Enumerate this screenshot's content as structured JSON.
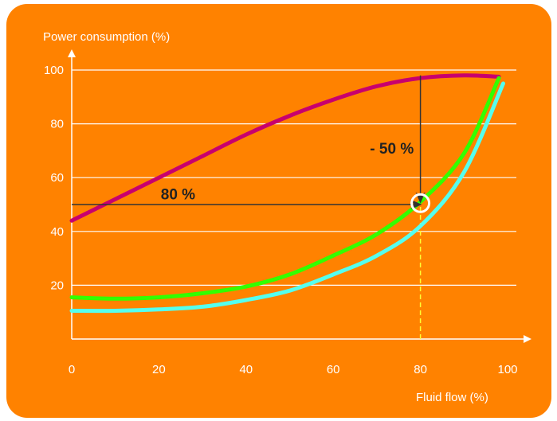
{
  "chart_data": {
    "type": "line",
    "xlabel": "Fluid flow (%)",
    "ylabel": "Power consumption (%)",
    "xlim": [
      0,
      100
    ],
    "ylim": [
      0,
      100
    ],
    "x_ticks": [
      0,
      20,
      40,
      60,
      80,
      100
    ],
    "y_ticks": [
      20,
      40,
      60,
      80,
      100
    ],
    "grid": "horizontal",
    "background_color": "#ff8200",
    "series": [
      {
        "color": "#c8006e",
        "x": [
          0,
          10,
          20,
          30,
          40,
          50,
          60,
          70,
          80,
          90,
          98
        ],
        "y": [
          44,
          52,
          60,
          68,
          76,
          83,
          89,
          94,
          97,
          98,
          97.5
        ]
      },
      {
        "color": "#33ff00",
        "x": [
          0,
          10,
          20,
          30,
          40,
          50,
          60,
          70,
          80,
          90,
          98
        ],
        "y": [
          15.5,
          15,
          15.5,
          17,
          19.5,
          24,
          31,
          39,
          51,
          69,
          97
        ]
      },
      {
        "color": "#55ffee",
        "x": [
          0,
          10,
          20,
          30,
          40,
          50,
          60,
          70,
          80,
          90,
          99
        ],
        "y": [
          10.5,
          10.5,
          11,
          12,
          14.5,
          18,
          24,
          31,
          42,
          62,
          95
        ]
      }
    ],
    "annotations": [
      {
        "text": "80 %",
        "x": 25,
        "y": 54
      },
      {
        "text": "- 50 %",
        "x": 73,
        "y": 71
      }
    ],
    "arrows": [
      {
        "from": [
          0,
          50
        ],
        "to": [
          80,
          50
        ]
      },
      {
        "from": [
          80,
          98
        ],
        "to": [
          80,
          51
        ]
      }
    ],
    "marker": {
      "x": 80,
      "y": 50.5
    },
    "dashed_line": {
      "color": "#ffff33",
      "from": [
        80,
        0
      ],
      "to": [
        80,
        50
      ]
    }
  }
}
